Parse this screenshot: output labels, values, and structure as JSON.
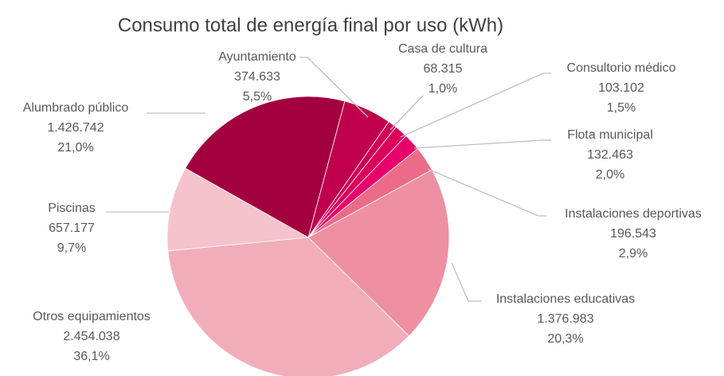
{
  "chart_data": {
    "type": "pie",
    "title": "Consumo total de energía final por uso (kWh)",
    "categories": [
      "Ayuntamiento",
      "Casa de cultura",
      "Consultorio médico",
      "Flota municipal",
      "Instalaciones deportivas",
      "Instalaciones educativas",
      "Otros equipamientos",
      "Piscinas",
      "Alumbrado público"
    ],
    "values": [
      374633,
      68315,
      103102,
      132463,
      196543,
      1376983,
      2454038,
      657177,
      1426742
    ],
    "value_labels": [
      "374.633",
      "68.315",
      "103.102",
      "132.463",
      "196.543",
      "1.376.983",
      "2.454.038",
      "657.177",
      "1.426.742"
    ],
    "percents": [
      5.5,
      1.0,
      1.5,
      2.0,
      2.9,
      20.3,
      36.1,
      9.7,
      21.0
    ],
    "percent_labels": [
      "5,5%",
      "1,0%",
      "1,5%",
      "2,0%",
      "2,9%",
      "20,3%",
      "36,1%",
      "9,7%",
      "21,0%"
    ],
    "colors": [
      "#c0004c",
      "#d10055",
      "#dc005c",
      "#e8006a",
      "#ec6c88",
      "#ee90a2",
      "#f2adbb",
      "#f4c3cb",
      "#a3003f"
    ]
  }
}
